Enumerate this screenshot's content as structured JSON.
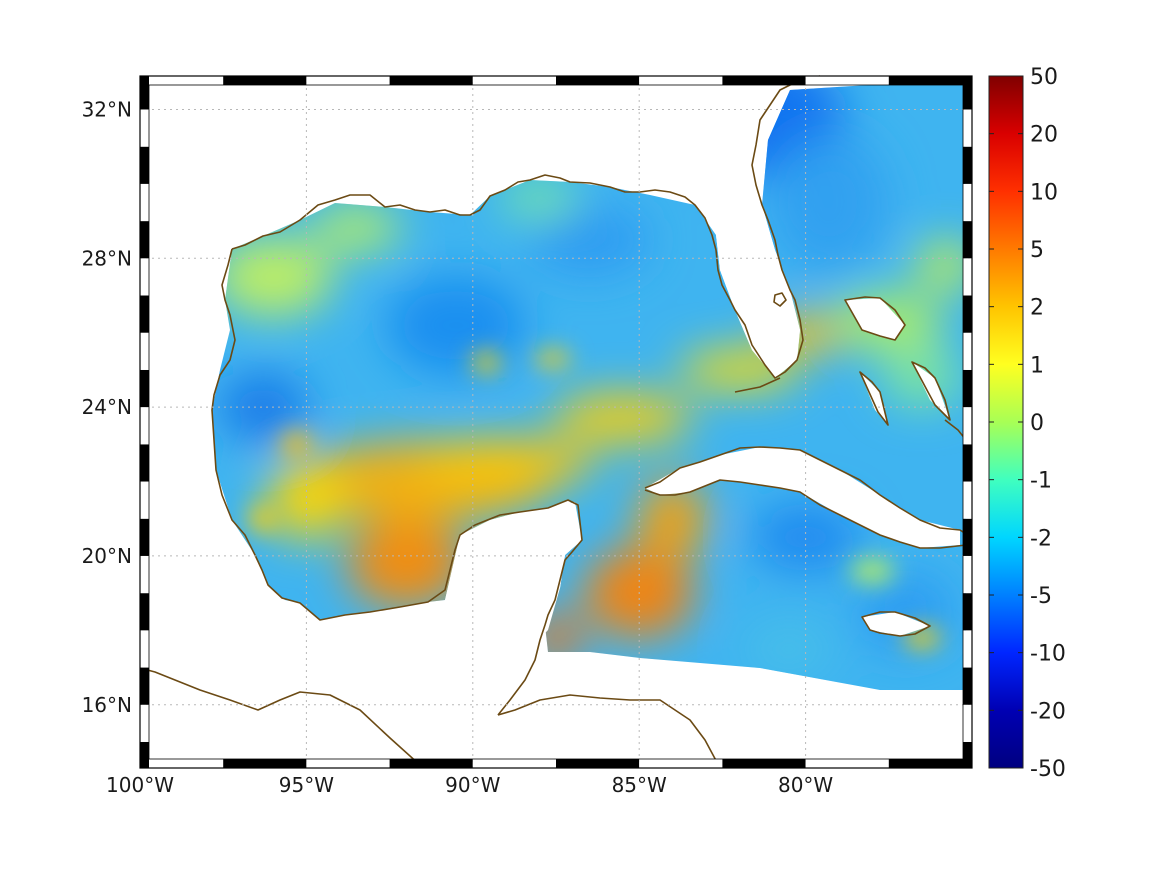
{
  "map": {
    "extent": {
      "lon_min": -100,
      "lon_max": -75,
      "lat_min": 14.3,
      "lat_max": 32.9
    },
    "x_ticks": [
      {
        "lon": -100,
        "label": "100°W"
      },
      {
        "lon": -95,
        "label": "95°W"
      },
      {
        "lon": -90,
        "label": "90°W"
      },
      {
        "lon": -85,
        "label": "85°W"
      },
      {
        "lon": -80,
        "label": "80°W"
      }
    ],
    "y_ticks": [
      {
        "lat": 16,
        "label": "16°N"
      },
      {
        "lat": 20,
        "label": "20°N"
      },
      {
        "lat": 24,
        "label": "24°N"
      },
      {
        "lat": 28,
        "label": "28°N"
      },
      {
        "lat": 32,
        "label": "32°N"
      }
    ],
    "grid": true,
    "coastline_color": "#6b4a14",
    "frame": "black-and-white checkered border"
  },
  "colorbar": {
    "ticks": [
      "50",
      "20",
      "10",
      "5",
      "2",
      "1",
      "0",
      "-1",
      "-2",
      "-5",
      "-10",
      "-20",
      "-50"
    ],
    "colors": [
      "#800000",
      "#d90000",
      "#ff3000",
      "#ff7a00",
      "#ffc400",
      "#ffff20",
      "#a8ff55",
      "#40ffbf",
      "#00d6ff",
      "#0080ff",
      "#0026ff",
      "#0000b3",
      "#000080"
    ],
    "placement": "right"
  },
  "chart_data": {
    "type": "heatmap",
    "title": "",
    "xlabel": "",
    "ylabel": "",
    "x_range": [
      -100,
      -75
    ],
    "y_range": [
      14.3,
      32.9
    ],
    "scale": "symmetric log",
    "value_range": [
      -50,
      50
    ],
    "regions": [
      {
        "name": "southern Gulf of Mexico band",
        "approx_value": 3
      },
      {
        "name": "Bay of Campeche",
        "approx_value": 5
      },
      {
        "name": "northern and central Gulf",
        "approx_value": -2
      },
      {
        "name": "Atlantic east of Florida",
        "approx_value": -5
      },
      {
        "name": "NW Caribbean near Honduras",
        "approx_value": 4
      },
      {
        "name": "Caribbean south of Cuba",
        "approx_value": -2
      },
      {
        "name": "Florida Straits",
        "approx_value": 2
      }
    ]
  }
}
